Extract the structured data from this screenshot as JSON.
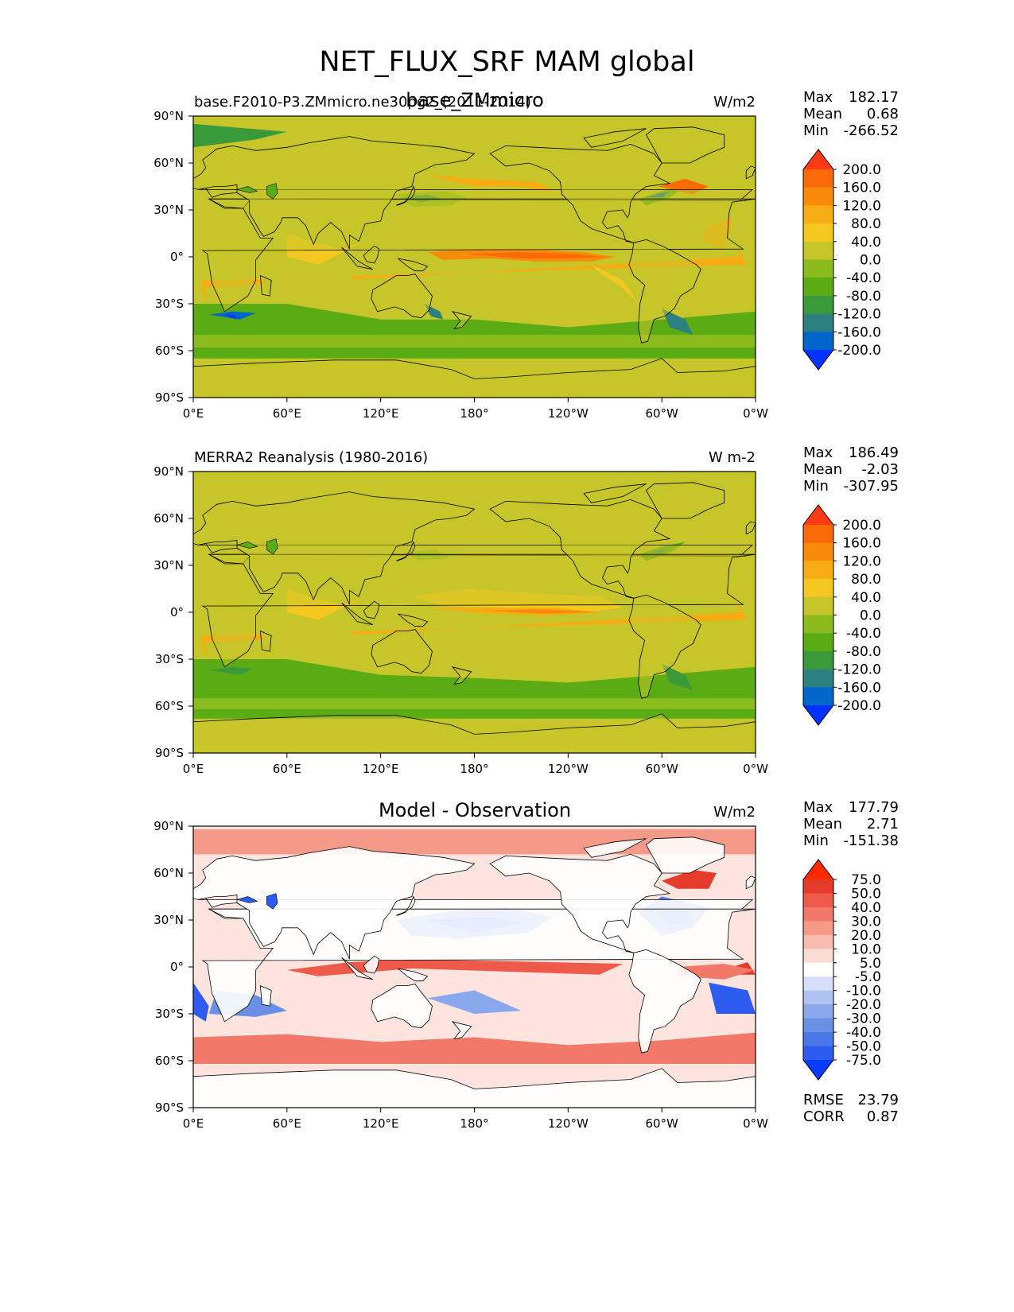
{
  "figure": {
    "title": "NET_FLUX_SRF MAM global"
  },
  "colors": {
    "model_scale": [
      "#0033ff",
      "#0066cc",
      "#2e8080",
      "#3a9a3a",
      "#5aab14",
      "#8cbb1e",
      "#c6c62a",
      "#f5c821",
      "#f8ac14",
      "#f88c0a",
      "#fa6a06",
      "#ff3a14"
    ],
    "diff_scale": [
      "#0a3cff",
      "#2e5cf0",
      "#4a78e8",
      "#6a90e6",
      "#8aa8ec",
      "#b0c2f2",
      "#d6defa",
      "#ffffff",
      "#fbdcd4",
      "#f8bcae",
      "#f59a88",
      "#f2786a",
      "#ed5a4a",
      "#e63a2a",
      "#ff2a00"
    ]
  },
  "panels": [
    {
      "id": "model",
      "left_title": "base.F2010-P3.ZMmicro.ne30pg2_(2011-2014)",
      "center_title": "base_ZMmicro",
      "units": "W/m2",
      "stats": {
        "max_label": "Max",
        "max_value": "182.17",
        "mean_label": "Mean",
        "mean_value": "0.68",
        "min_label": "Min",
        "min_value": "-266.52"
      },
      "colorbar_ticks": [
        "200.0",
        "160.0",
        "120.0",
        "80.0",
        "40.0",
        "0.0",
        "-40.0",
        "-80.0",
        "-120.0",
        "-160.0",
        "-200.0"
      ]
    },
    {
      "id": "obs",
      "left_title": "MERRA2 Reanalysis (1980-2016)",
      "center_title": "",
      "units": "W m-2",
      "stats": {
        "max_label": "Max",
        "max_value": "186.49",
        "mean_label": "Mean",
        "mean_value": "-2.03",
        "min_label": "Min",
        "min_value": "-307.95"
      },
      "colorbar_ticks": [
        "200.0",
        "160.0",
        "120.0",
        "80.0",
        "40.0",
        "0.0",
        "-40.0",
        "-80.0",
        "-120.0",
        "-160.0",
        "-200.0"
      ]
    },
    {
      "id": "diff",
      "left_title": "",
      "center_title": "Model - Observation",
      "units": "W/m2",
      "stats": {
        "max_label": "Max",
        "max_value": "177.79",
        "mean_label": "Mean",
        "mean_value": "2.71",
        "min_label": "Min",
        "min_value": "-151.38"
      },
      "colorbar_ticks": [
        "75.0",
        "50.0",
        "40.0",
        "30.0",
        "20.0",
        "10.0",
        "5.0",
        "-5.0",
        "-10.0",
        "-20.0",
        "-30.0",
        "-40.0",
        "-50.0",
        "-75.0"
      ],
      "extra": {
        "rmse_label": "RMSE",
        "rmse_value": "23.79",
        "corr_label": "CORR",
        "corr_value": "0.87"
      }
    }
  ],
  "axes": {
    "x_tick_labels": [
      "0°E",
      "60°E",
      "120°E",
      "180°",
      "120°W",
      "60°W",
      "0°W"
    ],
    "y_tick_labels": [
      "90°N",
      "60°N",
      "30°N",
      "0°",
      "30°S",
      "60°S",
      "90°S"
    ]
  },
  "chart_data": [
    {
      "type": "heatmap",
      "title": "base_ZMmicro",
      "subtitle": "base.F2010-P3.ZMmicro.ne30pg2_(2011-2014)",
      "units": "W/m2",
      "xlim": [
        0,
        360
      ],
      "ylim": [
        -90,
        90
      ],
      "x_ticks": [
        0,
        60,
        120,
        180,
        240,
        300,
        360
      ],
      "y_ticks": [
        90,
        60,
        30,
        0,
        -30,
        -60,
        -90
      ],
      "color_levels": [
        -200,
        -160,
        -120,
        -80,
        -40,
        0,
        40,
        80,
        120,
        160,
        200
      ],
      "colorbar_extend": "both",
      "max": 182.17,
      "mean": 0.68,
      "min": -266.52
    },
    {
      "type": "heatmap",
      "title": "MERRA2 Reanalysis (1980-2016)",
      "units": "W m-2",
      "xlim": [
        0,
        360
      ],
      "ylim": [
        -90,
        90
      ],
      "x_ticks": [
        0,
        60,
        120,
        180,
        240,
        300,
        360
      ],
      "y_ticks": [
        90,
        60,
        30,
        0,
        -30,
        -60,
        -90
      ],
      "color_levels": [
        -200,
        -160,
        -120,
        -80,
        -40,
        0,
        40,
        80,
        120,
        160,
        200
      ],
      "colorbar_extend": "both",
      "max": 186.49,
      "mean": -2.03,
      "min": -307.95
    },
    {
      "type": "heatmap",
      "title": "Model - Observation",
      "units": "W/m2",
      "xlim": [
        0,
        360
      ],
      "ylim": [
        -90,
        90
      ],
      "x_ticks": [
        0,
        60,
        120,
        180,
        240,
        300,
        360
      ],
      "y_ticks": [
        90,
        60,
        30,
        0,
        -30,
        -60,
        -90
      ],
      "color_levels": [
        -75,
        -50,
        -40,
        -30,
        -20,
        -10,
        -5,
        5,
        10,
        20,
        30,
        40,
        50,
        75
      ],
      "colorbar_extend": "both",
      "max": 177.79,
      "mean": 2.71,
      "min": -151.38,
      "rmse": 23.79,
      "corr": 0.87
    }
  ]
}
